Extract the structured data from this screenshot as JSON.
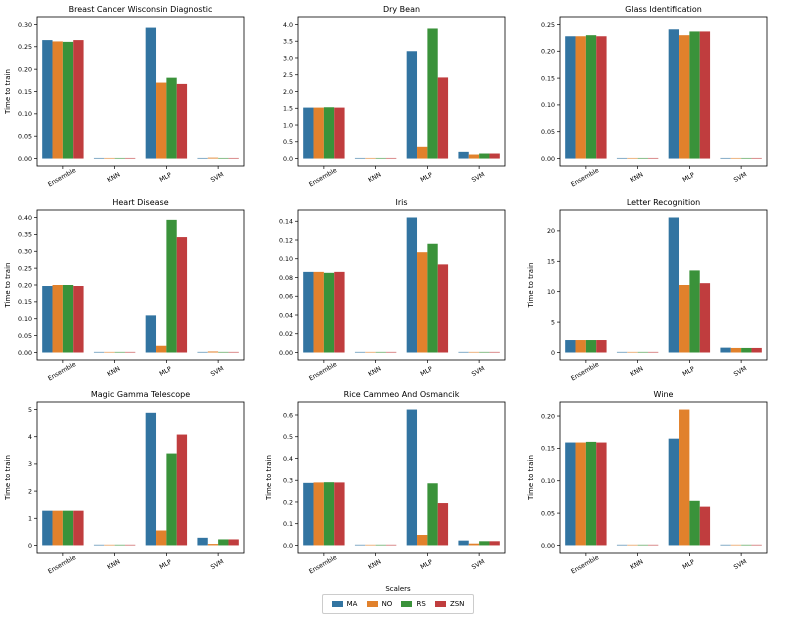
{
  "chart_data": [
    {
      "type": "bar",
      "title": "Breast Cancer Wisconsin Diagnostic",
      "ylabel": "Time to train",
      "xlabel": "",
      "categories": [
        "Ensemble",
        "KNN",
        "MLP",
        "SVM"
      ],
      "ylim": [
        0,
        0.3
      ],
      "yticks": [
        "0.00",
        "0.05",
        "0.10",
        "0.15",
        "0.20",
        "0.25",
        "0.30"
      ],
      "series": [
        {
          "name": "MA",
          "values": [
            0.265,
            0.0003,
            0.293,
            0.001
          ]
        },
        {
          "name": "NO",
          "values": [
            0.262,
            0.0003,
            0.17,
            0.002
          ]
        },
        {
          "name": "RS",
          "values": [
            0.261,
            0.0003,
            0.181,
            0.001
          ]
        },
        {
          "name": "ZSN",
          "values": [
            0.265,
            0.0003,
            0.167,
            0.001
          ]
        }
      ]
    },
    {
      "type": "bar",
      "title": "Dry Bean",
      "ylabel": "",
      "xlabel": "",
      "categories": [
        "Ensemble",
        "KNN",
        "MLP",
        "SVM"
      ],
      "ylim": [
        0,
        4.0
      ],
      "yticks": [
        "0.0",
        "0.5",
        "1.0",
        "1.5",
        "2.0",
        "2.5",
        "3.0",
        "3.5",
        "4.0"
      ],
      "series": [
        {
          "name": "MA",
          "values": [
            1.52,
            0.005,
            3.2,
            0.2
          ]
        },
        {
          "name": "NO",
          "values": [
            1.52,
            0.005,
            0.35,
            0.12
          ]
        },
        {
          "name": "RS",
          "values": [
            1.53,
            0.005,
            3.88,
            0.15
          ]
        },
        {
          "name": "ZSN",
          "values": [
            1.52,
            0.005,
            2.42,
            0.15
          ]
        }
      ]
    },
    {
      "type": "bar",
      "title": "Glass Identification",
      "ylabel": "",
      "xlabel": "",
      "categories": [
        "Ensemble",
        "KNN",
        "MLP",
        "SVM"
      ],
      "ylim": [
        0,
        0.25
      ],
      "yticks": [
        "0.00",
        "0.05",
        "0.10",
        "0.15",
        "0.20",
        "0.25"
      ],
      "series": [
        {
          "name": "MA",
          "values": [
            0.228,
            0.0003,
            0.241,
            0.001
          ]
        },
        {
          "name": "NO",
          "values": [
            0.228,
            0.0003,
            0.23,
            0.001
          ]
        },
        {
          "name": "RS",
          "values": [
            0.23,
            0.0003,
            0.237,
            0.001
          ]
        },
        {
          "name": "ZSN",
          "values": [
            0.228,
            0.0003,
            0.237,
            0.001
          ]
        }
      ]
    },
    {
      "type": "bar",
      "title": "Heart Disease",
      "ylabel": "Time to train",
      "xlabel": "",
      "categories": [
        "Ensemble",
        "KNN",
        "MLP",
        "SVM"
      ],
      "ylim": [
        0,
        0.4
      ],
      "yticks": [
        "0.00",
        "0.05",
        "0.10",
        "0.15",
        "0.20",
        "0.25",
        "0.30",
        "0.35",
        "0.40"
      ],
      "series": [
        {
          "name": "MA",
          "values": [
            0.197,
            0.0003,
            0.11,
            0.001
          ]
        },
        {
          "name": "NO",
          "values": [
            0.2,
            0.0003,
            0.02,
            0.003
          ]
        },
        {
          "name": "RS",
          "values": [
            0.2,
            0.0003,
            0.393,
            0.001
          ]
        },
        {
          "name": "ZSN",
          "values": [
            0.197,
            0.0003,
            0.342,
            0.001
          ]
        }
      ]
    },
    {
      "type": "bar",
      "title": "Iris",
      "ylabel": "",
      "xlabel": "",
      "categories": [
        "Ensemble",
        "KNN",
        "MLP",
        "SVM"
      ],
      "ylim": [
        0,
        0.14
      ],
      "yticks": [
        "0.00",
        "0.02",
        "0.04",
        "0.06",
        "0.08",
        "0.10",
        "0.12",
        "0.14"
      ],
      "series": [
        {
          "name": "MA",
          "values": [
            0.086,
            0.0002,
            0.144,
            0.0004
          ]
        },
        {
          "name": "NO",
          "values": [
            0.086,
            0.0002,
            0.107,
            0.0004
          ]
        },
        {
          "name": "RS",
          "values": [
            0.085,
            0.0002,
            0.116,
            0.0004
          ]
        },
        {
          "name": "ZSN",
          "values": [
            0.086,
            0.0002,
            0.094,
            0.0004
          ]
        }
      ]
    },
    {
      "type": "bar",
      "title": "Letter Recognition",
      "ylabel": "Time to train",
      "xlabel": "",
      "categories": [
        "Ensemble",
        "KNN",
        "MLP",
        "SVM"
      ],
      "ylim": [
        0,
        20
      ],
      "yticks": [
        "0",
        "5",
        "10",
        "15",
        "20"
      ],
      "series": [
        {
          "name": "MA",
          "values": [
            2.05,
            0.02,
            22.2,
            0.8
          ]
        },
        {
          "name": "NO",
          "values": [
            2.05,
            0.02,
            11.1,
            0.75
          ]
        },
        {
          "name": "RS",
          "values": [
            2.05,
            0.02,
            13.5,
            0.75
          ]
        },
        {
          "name": "ZSN",
          "values": [
            2.05,
            0.02,
            11.4,
            0.75
          ]
        }
      ]
    },
    {
      "type": "bar",
      "title": "Magic Gamma Telescope",
      "ylabel": "Time to train",
      "xlabel": "",
      "categories": [
        "Ensemble",
        "KNN",
        "MLP",
        "SVM"
      ],
      "ylim": [
        0,
        5
      ],
      "yticks": [
        "0",
        "1",
        "2",
        "3",
        "4",
        "5"
      ],
      "series": [
        {
          "name": "MA",
          "values": [
            1.28,
            0.01,
            4.88,
            0.28
          ]
        },
        {
          "name": "NO",
          "values": [
            1.28,
            0.01,
            0.55,
            0.05
          ]
        },
        {
          "name": "RS",
          "values": [
            1.28,
            0.01,
            3.38,
            0.22
          ]
        },
        {
          "name": "ZSN",
          "values": [
            1.28,
            0.01,
            4.08,
            0.22
          ]
        }
      ]
    },
    {
      "type": "bar",
      "title": "Rice Cammeo And Osmancik",
      "ylabel": "Time to train",
      "xlabel": "",
      "categories": [
        "Ensemble",
        "KNN",
        "MLP",
        "SVM"
      ],
      "ylim": [
        0,
        0.6
      ],
      "yticks": [
        "0.0",
        "0.1",
        "0.2",
        "0.3",
        "0.4",
        "0.5",
        "0.6"
      ],
      "series": [
        {
          "name": "MA",
          "values": [
            0.288,
            0.002,
            0.625,
            0.022
          ]
        },
        {
          "name": "NO",
          "values": [
            0.29,
            0.002,
            0.048,
            0.008
          ]
        },
        {
          "name": "RS",
          "values": [
            0.291,
            0.002,
            0.286,
            0.019
          ]
        },
        {
          "name": "ZSN",
          "values": [
            0.29,
            0.002,
            0.195,
            0.019
          ]
        }
      ]
    },
    {
      "type": "bar",
      "title": "Wine",
      "ylabel": "Time to train",
      "xlabel": "",
      "categories": [
        "Ensemble",
        "KNN",
        "MLP",
        "SVM"
      ],
      "ylim": [
        0,
        0.2
      ],
      "yticks": [
        "0.00",
        "0.05",
        "0.10",
        "0.15",
        "0.20"
      ],
      "series": [
        {
          "name": "MA",
          "values": [
            0.159,
            0.0003,
            0.165,
            0.0005
          ]
        },
        {
          "name": "NO",
          "values": [
            0.159,
            0.0003,
            0.21,
            0.0005
          ]
        },
        {
          "name": "RS",
          "values": [
            0.16,
            0.0003,
            0.069,
            0.0005
          ]
        },
        {
          "name": "ZSN",
          "values": [
            0.159,
            0.0003,
            0.06,
            0.0005
          ]
        }
      ]
    }
  ],
  "legend": {
    "title": "Scalers",
    "placement": "bottom-center",
    "items": [
      {
        "label": "MA",
        "color": "#3274a1"
      },
      {
        "label": "NO",
        "color": "#e1812c"
      },
      {
        "label": "RS",
        "color": "#3a923a"
      },
      {
        "label": "ZSN",
        "color": "#c03d3e"
      }
    ]
  }
}
